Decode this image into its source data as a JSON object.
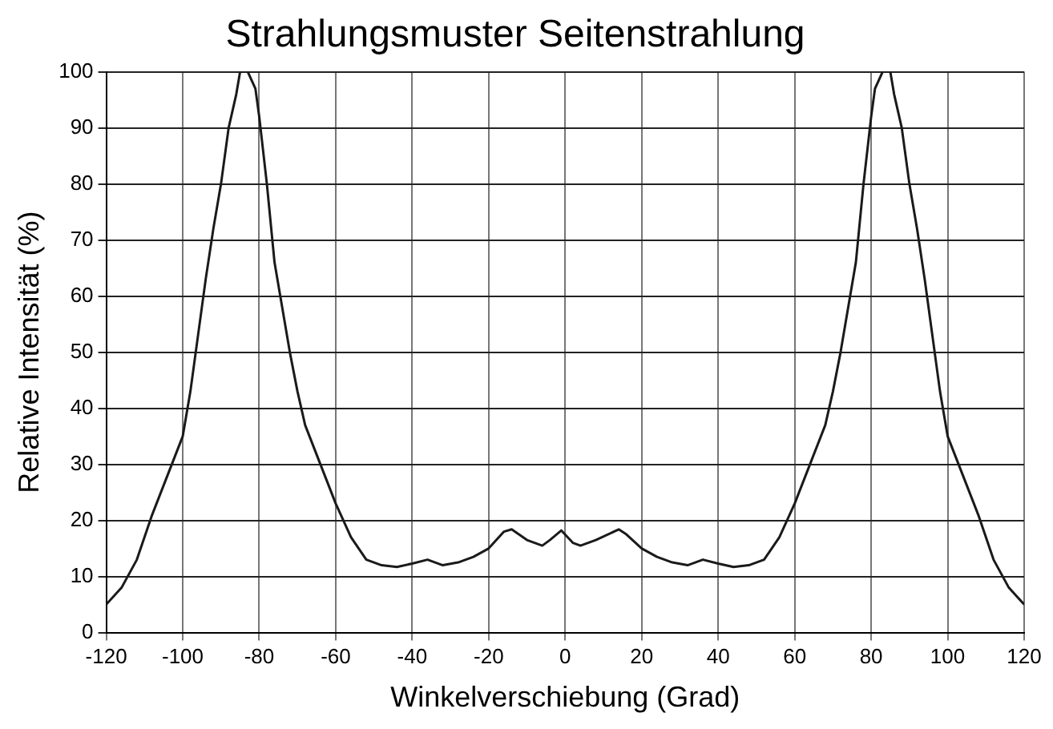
{
  "chart_data": {
    "type": "line",
    "title": "Strahlungsmuster Seitenstrahlung",
    "xlabel": "Winkelverschiebung (Grad)",
    "ylabel": "Relative Intensität (%)",
    "x": [
      -120,
      -116,
      -112,
      -108,
      -104,
      -100,
      -98,
      -96,
      -94,
      -92,
      -90,
      -88,
      -86,
      -85,
      -83,
      -81,
      -80,
      -78,
      -76,
      -74,
      -72,
      -70,
      -68,
      -64,
      -60,
      -56,
      -52,
      -48,
      -44,
      -40,
      -36,
      -32,
      -28,
      -24,
      -20,
      -16,
      -14,
      -10,
      -6,
      -4,
      -1,
      2,
      4,
      8,
      14,
      16,
      20,
      24,
      28,
      32,
      36,
      40,
      44,
      48,
      52,
      56,
      60,
      64,
      68,
      70,
      72,
      74,
      76,
      78,
      80,
      81,
      83,
      85,
      86,
      88,
      90,
      92,
      94,
      96,
      98,
      100,
      104,
      108,
      112,
      116,
      120
    ],
    "series": [
      {
        "color": "#1a1a1a",
        "values": [
          5,
          8,
          13,
          21,
          28,
          35,
          43,
          53,
          63,
          72,
          80,
          90,
          96,
          100,
          100,
          97,
          92,
          80,
          66,
          58,
          50,
          43,
          37,
          30,
          23,
          17,
          13,
          12,
          11.7,
          12.3,
          13,
          12,
          12.5,
          13.5,
          15,
          18,
          18.4,
          16.5,
          15.5,
          16.5,
          18.2,
          16,
          15.5,
          16.5,
          18.4,
          17.5,
          15,
          13.5,
          12.5,
          12,
          13,
          12.3,
          11.7,
          12,
          13,
          17,
          23,
          30,
          37,
          43,
          50,
          58,
          66,
          80,
          92,
          97,
          100,
          100,
          96,
          90,
          80,
          72,
          63,
          53,
          43,
          35,
          28,
          21,
          13,
          8,
          5
        ]
      }
    ],
    "xlim": [
      -120,
      120
    ],
    "ylim": [
      0,
      100
    ],
    "xticks": [
      -120,
      -100,
      -80,
      -60,
      -40,
      -20,
      0,
      20,
      40,
      60,
      80,
      100,
      120
    ],
    "yticks": [
      0,
      10,
      20,
      30,
      40,
      50,
      60,
      70,
      80,
      90,
      100
    ],
    "grid": true,
    "legend": false,
    "marker": "none",
    "line_style": "solid"
  }
}
